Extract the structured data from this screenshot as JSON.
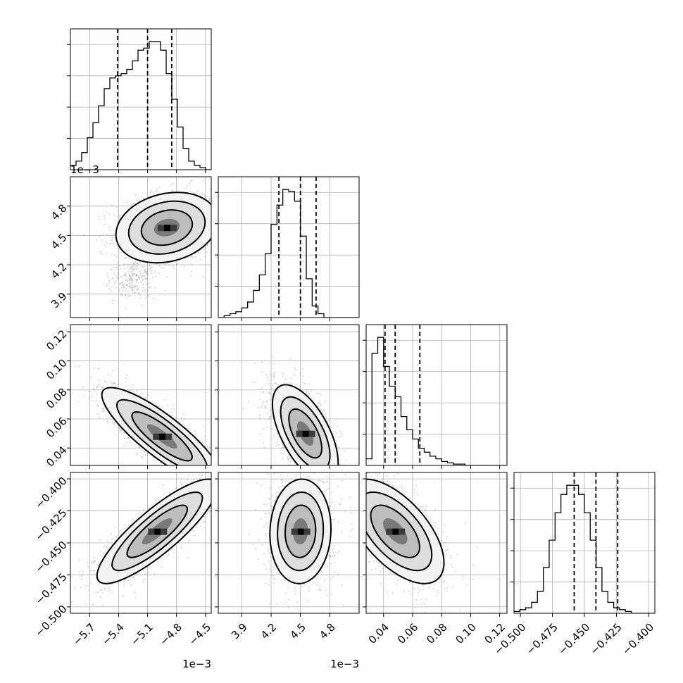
{
  "chart_data": {
    "type": "corner",
    "parameters": [
      {
        "index": 0,
        "ticks": [
          -5.7,
          -5.4,
          -5.1,
          -4.8,
          -4.5
        ],
        "tick_labels": [
          "−5.7",
          "−5.4",
          "−5.1",
          "−4.8",
          "−4.5"
        ],
        "range": [
          -5.9,
          -4.44
        ],
        "offset_label": "1e−3",
        "quantiles": [
          -5.41,
          -5.1,
          -4.85
        ],
        "hist": {
          "edges_start": -5.9,
          "bin_width": 0.0584,
          "counts": [
            2,
            4,
            8,
            15,
            22,
            30,
            38,
            43,
            44,
            45,
            47,
            51,
            56,
            57,
            60,
            60,
            56,
            45,
            33,
            20,
            10,
            4,
            2,
            1,
            0
          ]
        }
      },
      {
        "index": 1,
        "ticks": [
          3.9,
          4.2,
          4.5,
          4.8
        ],
        "tick_labels": [
          "3.9",
          "4.2",
          "4.5",
          "4.8"
        ],
        "range": [
          3.66,
          5.1
        ],
        "offset_label": "1e−3",
        "quantiles": [
          4.28,
          4.5,
          4.66
        ],
        "hist": {
          "edges_start": 3.66,
          "bin_width": 0.06,
          "counts": [
            0,
            1,
            2,
            3,
            5,
            8,
            14,
            22,
            33,
            48,
            58,
            66,
            65,
            60,
            42,
            20,
            6,
            2,
            0,
            0,
            0,
            0,
            0,
            0
          ]
        }
      },
      {
        "index": 2,
        "ticks": [
          0.04,
          0.06,
          0.08,
          0.1,
          0.12
        ],
        "tick_labels": [
          "0.04",
          "0.06",
          "0.08",
          "0.10",
          "0.12"
        ],
        "range": [
          0.028,
          0.125
        ],
        "offset_label": "",
        "quantiles": [
          0.041,
          0.048,
          0.065
        ],
        "hist": {
          "edges_start": 0.028,
          "bin_width": 0.004,
          "counts": [
            5,
            85,
            97,
            75,
            60,
            52,
            37,
            27,
            20,
            13,
            10,
            7,
            5,
            3,
            2,
            1,
            1,
            0,
            0,
            0,
            0,
            0,
            0,
            0
          ]
        }
      },
      {
        "index": 3,
        "ticks": [
          -0.5,
          -0.475,
          -0.45,
          -0.425,
          -0.4
        ],
        "tick_labels": [
          "−0.500",
          "−0.475",
          "−0.450",
          "−0.425",
          "−0.400"
        ],
        "range": [
          -0.505,
          -0.395
        ],
        "offset_label": "",
        "quantiles": [
          -0.458,
          -0.441,
          -0.424
        ],
        "hist": {
          "edges_start": -0.505,
          "bin_width": 0.00458,
          "counts": [
            1,
            2,
            3,
            6,
            12,
            25,
            40,
            55,
            65,
            70,
            70,
            65,
            55,
            40,
            25,
            12,
            6,
            3,
            2,
            1,
            0,
            0,
            0,
            0
          ]
        }
      }
    ],
    "densities": [
      {
        "row": 1,
        "col": 0,
        "mean": [
          -4.9,
          4.58
        ],
        "std": [
          0.22,
          0.15
        ],
        "corr": 0.2,
        "sparse_tail": {
          "mean": [
            -5.25,
            4.05
          ],
          "std": [
            0.12,
            0.1
          ]
        }
      },
      {
        "row": 2,
        "col": 0,
        "mean": [
          -4.95,
          0.048
        ],
        "std": [
          0.26,
          0.014
        ],
        "corr": -0.85
      },
      {
        "row": 2,
        "col": 1,
        "mean": [
          4.55,
          0.05
        ],
        "std": [
          0.14,
          0.014
        ],
        "corr": -0.6
      },
      {
        "row": 3,
        "col": 0,
        "mean": [
          -5.0,
          -0.441
        ],
        "std": [
          0.26,
          0.017
        ],
        "corr": 0.85
      },
      {
        "row": 3,
        "col": 1,
        "mean": [
          4.5,
          -0.441
        ],
        "std": [
          0.13,
          0.017
        ],
        "corr": 0.05
      },
      {
        "row": 3,
        "col": 2,
        "mean": [
          0.048,
          -0.441
        ],
        "std": [
          0.014,
          0.017
        ],
        "corr": -0.6
      }
    ],
    "grid": true,
    "corner_offset_label": "1e−3",
    "y_offset_label_row": 1
  }
}
